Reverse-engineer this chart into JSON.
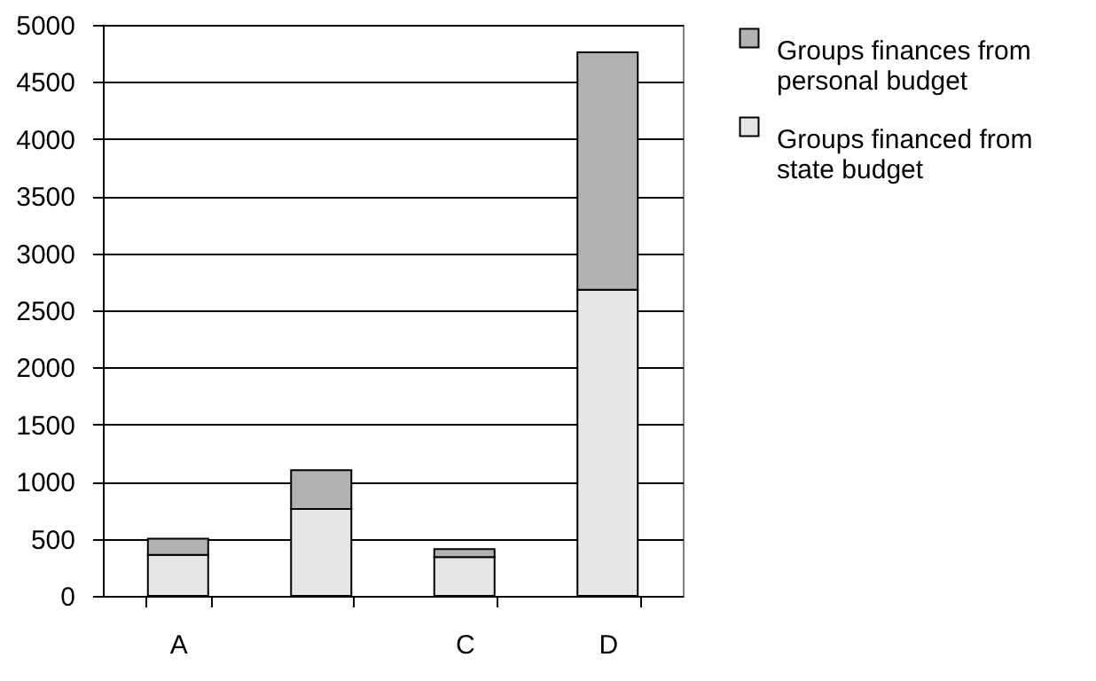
{
  "chart_data": {
    "type": "bar",
    "stacked": true,
    "categories": [
      "A",
      null,
      "C",
      "D"
    ],
    "series": [
      {
        "name": "Groups financed from state budget",
        "color": "#e6e6e6",
        "values": [
          360,
          760,
          340,
          2680
        ]
      },
      {
        "name": "Groups finances from personal budget",
        "color": "#b2b2b2",
        "values": [
          140,
          340,
          70,
          2080
        ]
      }
    ],
    "ylim": [
      0,
      5000
    ],
    "yticks": [
      0,
      500,
      1000,
      1500,
      2000,
      2500,
      3000,
      3500,
      4000,
      4500,
      5000
    ],
    "grid": "y",
    "legend": "right"
  }
}
